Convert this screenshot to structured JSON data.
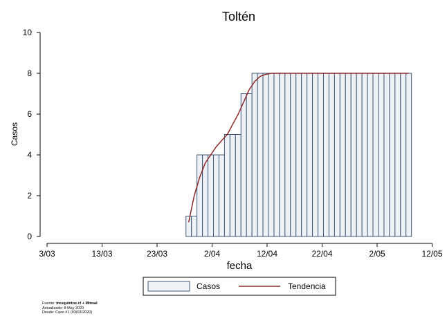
{
  "chart_data": {
    "type": "bar",
    "title": "Toltén",
    "xlabel": "fecha",
    "ylabel": "Casos",
    "ylim": [
      0,
      10
    ],
    "yticks": [
      0,
      2,
      4,
      6,
      8,
      10
    ],
    "xaxis_start": "2020-03-03",
    "xticks": [
      "3/03",
      "13/03",
      "23/03",
      "2/04",
      "12/04",
      "22/04",
      "2/05",
      "12/05"
    ],
    "xtick_offsets_days": [
      0,
      10,
      20,
      30,
      40,
      50,
      60,
      70
    ],
    "bar_start_offset_days": 25,
    "categories": [
      "28/03",
      "29/03",
      "30/03",
      "31/03",
      "1/04",
      "2/04",
      "3/04",
      "4/04",
      "5/04",
      "6/04",
      "7/04",
      "8/04",
      "9/04",
      "10/04",
      "11/04",
      "12/04",
      "13/04",
      "14/04",
      "15/04",
      "16/04",
      "17/04",
      "18/04",
      "19/04",
      "20/04",
      "21/04",
      "22/04",
      "23/04",
      "24/04",
      "25/04",
      "26/04",
      "27/04",
      "28/04",
      "29/04",
      "30/04",
      "1/05",
      "2/05",
      "3/05",
      "4/05",
      "5/05",
      "6/05",
      "7/05"
    ],
    "series": [
      {
        "name": "Casos",
        "values": [
          1,
          1,
          4,
          4,
          4,
          4,
          4,
          5,
          5,
          5,
          7,
          7,
          8,
          8,
          8,
          8,
          8,
          8,
          8,
          8,
          8,
          8,
          8,
          8,
          8,
          8,
          8,
          8,
          8,
          8,
          8,
          8,
          8,
          8,
          8,
          8,
          8,
          8,
          8,
          8,
          8
        ]
      },
      {
        "name": "Tendencia",
        "values": [
          0.7,
          2.0,
          2.9,
          3.6,
          4.0,
          4.4,
          4.7,
          5.0,
          5.5,
          6.0,
          6.6,
          7.2,
          7.6,
          7.85,
          7.95,
          8.0,
          8.0,
          8.0,
          8.0,
          8.0,
          8.0,
          8.0,
          8.0,
          8.0,
          8.0,
          8.0,
          8.0,
          8.0,
          8.0,
          8.0,
          8.0,
          8.0,
          8.0,
          8.0,
          8.0,
          8.0,
          8.0,
          8.0,
          8.0,
          8.0,
          8.0
        ]
      }
    ],
    "colors": {
      "bar_fill": "#eef2f6",
      "bar_stroke": "#3f5878",
      "trend": "#8b2a2a",
      "axis": "#000000"
    },
    "legend": {
      "placement": "bottom",
      "items": [
        "Casos",
        "Tendencia"
      ]
    },
    "grid": false
  },
  "source": {
    "line1_prefix": "Fuente: ",
    "line1_bold": "tresquintos.cl + Minsal",
    "line2": "Actualizado: 8 May 2020",
    "line3": "Desde: Caso #1  (03/03/2020)"
  }
}
